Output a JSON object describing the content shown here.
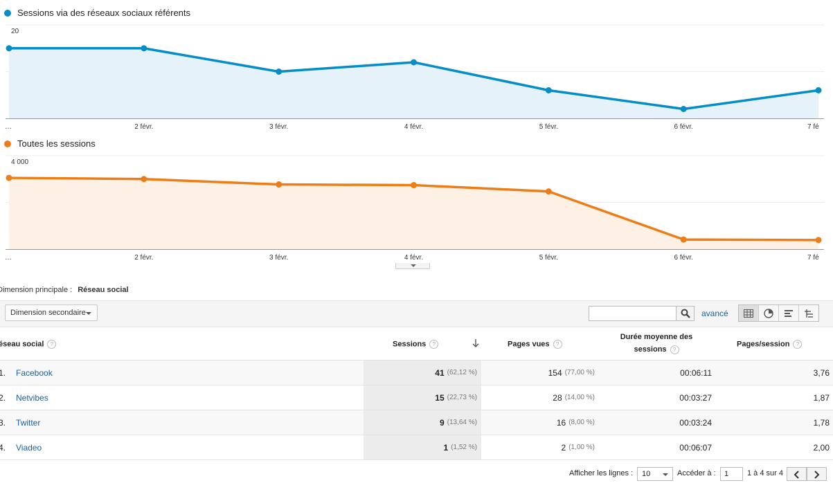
{
  "chart_data": [
    {
      "type": "area",
      "title": "Sessions via des réseaux sociaux référents",
      "color": "#058dc7",
      "fill": "#e5f2f9",
      "ylim": [
        0,
        20
      ],
      "yticks": [
        "20",
        "10"
      ],
      "categories": [
        "…",
        "2 févr.",
        "3 févr.",
        "4 févr.",
        "5 févr.",
        "6 févr.",
        "7 fé"
      ],
      "values": [
        15,
        15,
        10,
        12,
        6,
        2,
        6
      ],
      "grid": true
    },
    {
      "type": "area",
      "title": "Toutes les sessions",
      "color": "#ed7e17",
      "fill": "#fdf1e5",
      "ylim": [
        0,
        4000
      ],
      "yticks": [
        "4 000",
        "2 000"
      ],
      "categories": [
        "…",
        "2 févr.",
        "3 févr.",
        "4 févr.",
        "5 févr.",
        "6 févr.",
        "7 fé"
      ],
      "values": [
        3050,
        3000,
        2770,
        2740,
        2470,
        410,
        390
      ],
      "grid": true
    }
  ],
  "dimension": {
    "label": "Dimension principale :",
    "value": "Réseau social"
  },
  "toolbar": {
    "secondary_dimension": "Dimension secondaire",
    "search_placeholder": "",
    "advanced": "avancé",
    "view_icons": [
      "table-view-icon",
      "pie-view-icon",
      "bar-view-icon",
      "pivot-view-icon"
    ]
  },
  "table": {
    "headers": {
      "network": "éseau social",
      "sessions": "Sessions",
      "pageviews": "Pages vues",
      "duration": "Durée moyenne des sessions",
      "pages_per_session": "Pages/session"
    },
    "rows": [
      {
        "index": "1.",
        "name": "Facebook",
        "sessions": "41",
        "sessions_pct": "(62,12 %)",
        "sessions_share": 0.6212,
        "pageviews": "154",
        "pageviews_pct": "(77,00 %)",
        "duration": "00:06:11",
        "pps": "3,76"
      },
      {
        "index": "2.",
        "name": "Netvibes",
        "sessions": "15",
        "sessions_pct": "(22,73 %)",
        "sessions_share": 0.2273,
        "pageviews": "28",
        "pageviews_pct": "(14,00 %)",
        "duration": "00:03:27",
        "pps": "1,87"
      },
      {
        "index": "3.",
        "name": "Twitter",
        "sessions": "9",
        "sessions_pct": "(13,64 %)",
        "sessions_share": 0.1364,
        "pageviews": "16",
        "pageviews_pct": "(8,00 %)",
        "duration": "00:03:24",
        "pps": "1,78"
      },
      {
        "index": "4.",
        "name": "Viadeo",
        "sessions": "1",
        "sessions_pct": "(1,52 %)",
        "sessions_share": 0.0152,
        "pageviews": "2",
        "pageviews_pct": "(1,00 %)",
        "duration": "00:06:07",
        "pps": "2,00"
      }
    ]
  },
  "footer": {
    "rows_label": "Afficher les lignes :",
    "rows_value": "10",
    "goto_label": "Accéder à :",
    "goto_value": "1",
    "range": "1 à 4 sur 4"
  }
}
